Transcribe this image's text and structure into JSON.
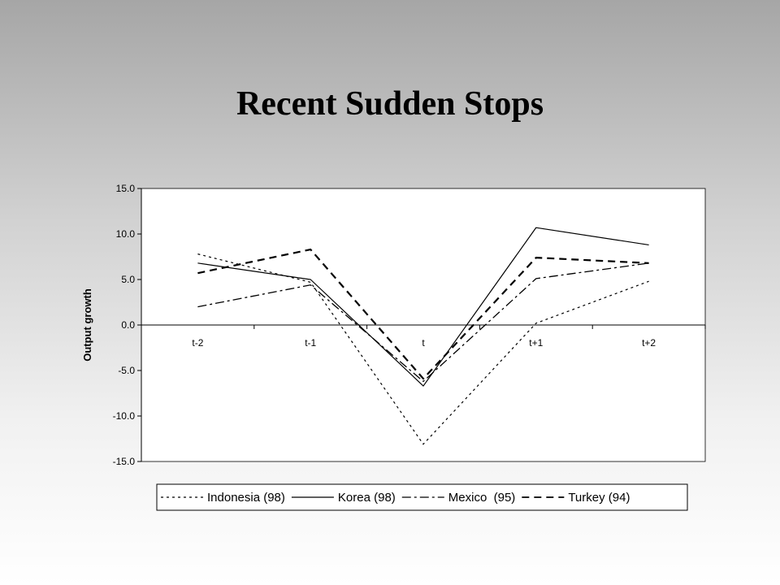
{
  "slide": {
    "title": "Recent Sudden Stops"
  },
  "chart_data": {
    "type": "line",
    "ylabel": "Output growth",
    "xlabel": "",
    "categories": [
      "t-2",
      "t-1",
      "t",
      "t+1",
      "t+2"
    ],
    "ylim": [
      -15,
      15
    ],
    "yticks": [
      "15.0",
      "10.0",
      "5.0",
      "0.0",
      "-5.0",
      "-10.0",
      "-15.0"
    ],
    "grid": false,
    "legend_position": "bottom",
    "series": [
      {
        "name": "Indonesia (98)",
        "values": [
          7.8,
          4.7,
          -13.1,
          0.2,
          4.8
        ],
        "dash": "3,4",
        "width": 1.2
      },
      {
        "name": "Korea (98)",
        "values": [
          6.8,
          5.0,
          -6.7,
          10.7,
          8.8
        ],
        "dash": "",
        "width": 1.2
      },
      {
        "name": "Mexico  (95)",
        "values": [
          2.0,
          4.4,
          -6.2,
          5.1,
          6.8
        ],
        "dash": "11,4,3,4",
        "width": 1.3
      },
      {
        "name": "Turkey (94)",
        "values": [
          5.7,
          8.3,
          -5.9,
          7.4,
          6.8
        ],
        "dash": "9,6",
        "width": 2.2
      }
    ]
  }
}
